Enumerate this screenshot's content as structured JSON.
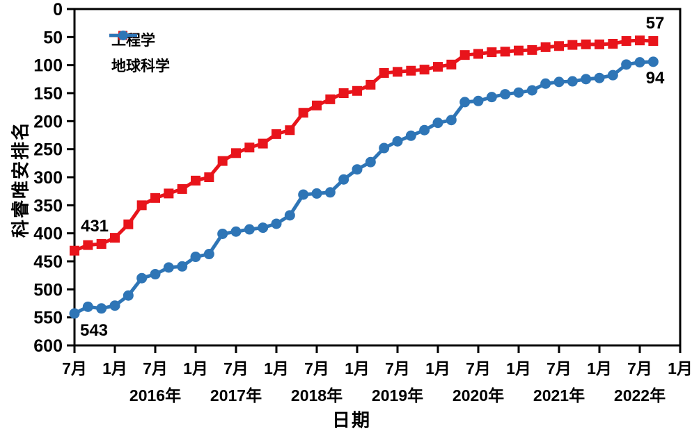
{
  "chart_data": {
    "type": "line",
    "title": "",
    "xlabel": "日期",
    "ylabel": "科睿唯安排名",
    "ylim": [
      0,
      600
    ],
    "y_ticks": [
      0,
      50,
      100,
      150,
      200,
      250,
      300,
      350,
      400,
      450,
      500,
      550,
      600
    ],
    "y_direction": "0 at top (rank axis)",
    "x_month_ticks": [
      "7月",
      "1月",
      "7月",
      "1月",
      "7月",
      "1月",
      "7月",
      "1月",
      "7月",
      "1月",
      "7月",
      "1月",
      "7月",
      "1月",
      "7月",
      "1月"
    ],
    "x_year_labels": [
      "2016年",
      "2017年",
      "2018年",
      "2019年",
      "2020年",
      "2021年",
      "2022年"
    ],
    "x_start": "2015年7月",
    "x_interval_months": 2,
    "grid": false,
    "legend_position": "top-left inside plot",
    "series": [
      {
        "id": "engineering",
        "name": "工程学",
        "color": "#e8141b",
        "marker": "square",
        "values": [
          431,
          421,
          419,
          408,
          384,
          350,
          337,
          329,
          321,
          306,
          300,
          271,
          257,
          247,
          240,
          223,
          216,
          185,
          172,
          161,
          150,
          146,
          135,
          114,
          112,
          110,
          108,
          103,
          99,
          82,
          80,
          77,
          76,
          74,
          73,
          68,
          66,
          64,
          63,
          63,
          62,
          57,
          56,
          57
        ]
      },
      {
        "id": "earth-science",
        "name": "地球科学",
        "color": "#2e75b6",
        "marker": "circle",
        "values": [
          543,
          531,
          534,
          529,
          511,
          480,
          473,
          461,
          459,
          442,
          437,
          401,
          397,
          393,
          390,
          383,
          368,
          331,
          329,
          327,
          304,
          286,
          273,
          248,
          236,
          226,
          216,
          203,
          198,
          166,
          164,
          157,
          152,
          149,
          145,
          133,
          130,
          129,
          125,
          123,
          118,
          99,
          95,
          94
        ]
      }
    ],
    "annotations": [
      {
        "text": "431",
        "target": "first point of 工程学"
      },
      {
        "text": "543",
        "target": "first point of 地球科学"
      },
      {
        "text": "57",
        "target": "last point of 工程学"
      },
      {
        "text": "94",
        "target": "last point of 地球科学"
      }
    ]
  }
}
